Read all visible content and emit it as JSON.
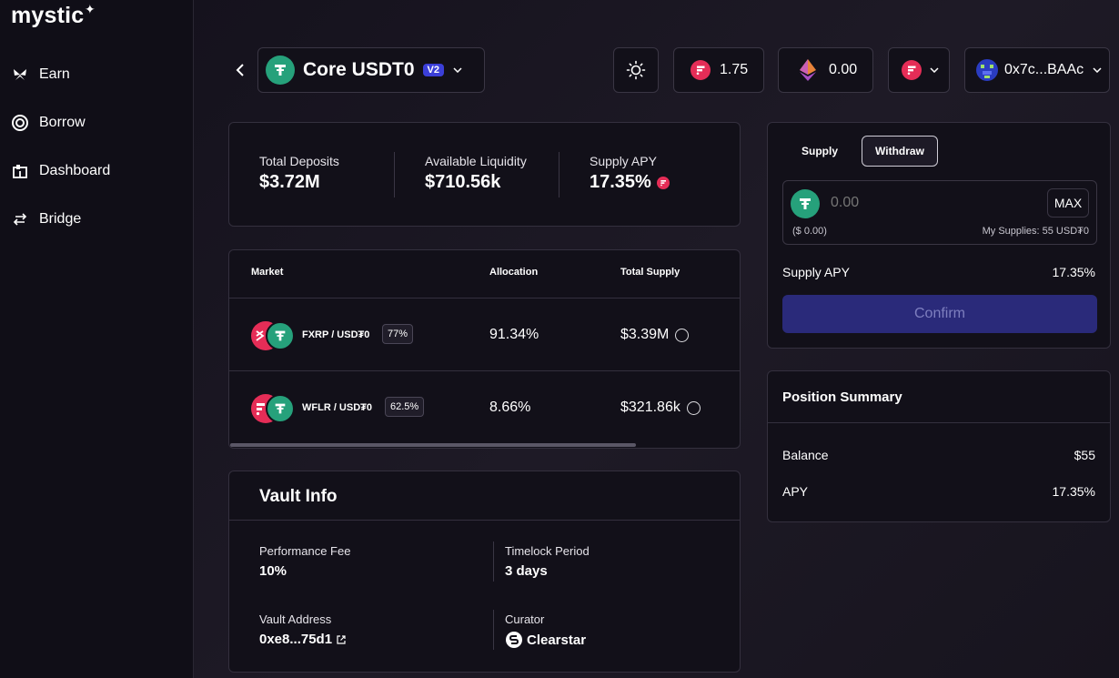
{
  "app": {
    "logo": "mystic",
    "logo_spark": "✦"
  },
  "sidebar": {
    "items": [
      {
        "label": "Earn",
        "icon": "butterfly-icon"
      },
      {
        "label": "Borrow",
        "icon": "ring-icon"
      },
      {
        "label": "Dashboard",
        "icon": "dashboard-icon"
      },
      {
        "label": "Bridge",
        "icon": "bridge-arrows-icon"
      }
    ]
  },
  "header": {
    "vault_name": "Core USDT0",
    "version_badge": "V2",
    "flare_balance": "1.75",
    "eth_balance": "0.00",
    "wallet_address": "0x7c...BAAc"
  },
  "stats": {
    "total_deposits_label": "Total Deposits",
    "total_deposits": "$3.72M",
    "available_liquidity_label": "Available Liquidity",
    "available_liquidity": "$710.56k",
    "supply_apy_label": "Supply APY",
    "supply_apy": "17.35%"
  },
  "markets": {
    "headers": {
      "market": "Market",
      "allocation": "Allocation",
      "total_supply": "Total Supply"
    },
    "rows": [
      {
        "market": "FXRP / USD₮0",
        "lltv": "77%",
        "allocation": "91.34%",
        "total_supply": "$3.39M"
      },
      {
        "market": "WFLR / USD₮0",
        "lltv": "62.5%",
        "allocation": "8.66%",
        "total_supply": "$321.86k"
      }
    ]
  },
  "vault_info": {
    "title": "Vault Info",
    "performance_fee_label": "Performance Fee",
    "performance_fee": "10%",
    "timelock_label": "Timelock Period",
    "timelock": "3 days",
    "address_label": "Vault Address",
    "address": "0xe8...75d1",
    "curator_label": "Curator",
    "curator": "Clearstar"
  },
  "action": {
    "tab_supply": "Supply",
    "tab_withdraw": "Withdraw",
    "amount_placeholder": "0.00",
    "max_label": "MAX",
    "usd_value": "($ 0.00)",
    "my_supplies": "My Supplies: 55 USD₮0",
    "supply_apy_label": "Supply APY",
    "supply_apy": "17.35%",
    "confirm_label": "Confirm"
  },
  "position": {
    "title": "Position Summary",
    "balance_label": "Balance",
    "balance": "$55",
    "apy_label": "APY",
    "apy": "17.35%"
  },
  "colors": {
    "accent": "#3b3fd8",
    "tether": "#26a17b",
    "flare": "#e52d57",
    "confirm_bg": "#2a2a7a"
  }
}
